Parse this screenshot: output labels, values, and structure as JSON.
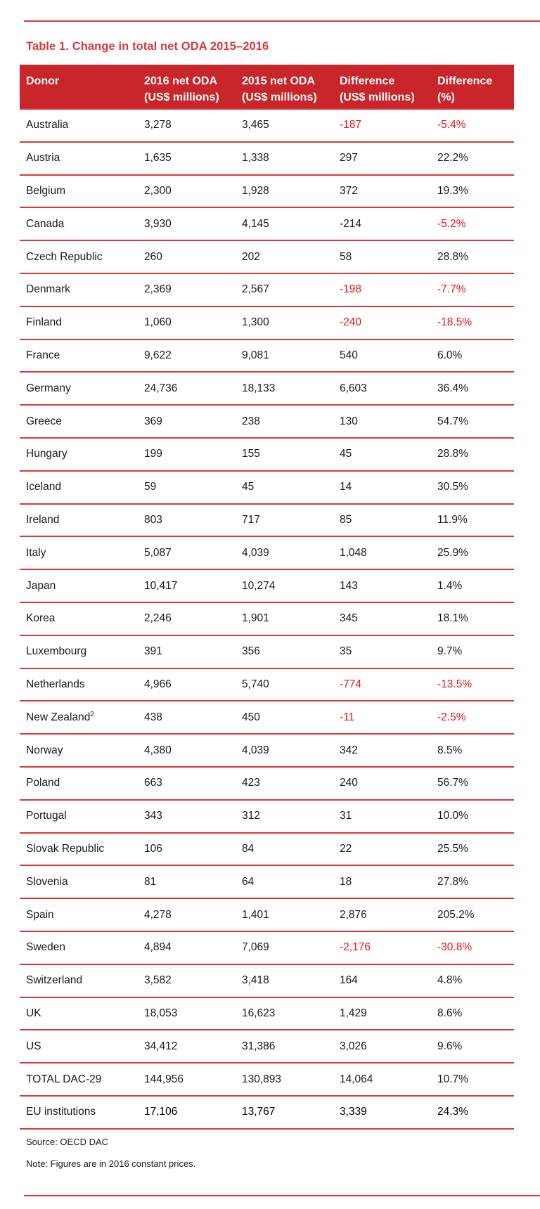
{
  "title": "Table 1. Change in total net ODA 2015–2016",
  "headers": [
    [
      "Donor",
      ""
    ],
    [
      "2016 net ODA",
      "(US$ millions)"
    ],
    [
      "2015 net ODA",
      "(US$ millions)"
    ],
    [
      "Difference",
      "(US$ millions)"
    ],
    [
      "Difference",
      "(%)"
    ]
  ],
  "rows": [
    {
      "donor": "Australia",
      "oda2016": "3,278",
      "oda2015": "3,465",
      "diff": "-187",
      "pct": "-5.4%",
      "diff_neg": true,
      "pct_neg": true
    },
    {
      "donor": "Austria",
      "oda2016": "1,635",
      "oda2015": "1,338",
      "diff": "297",
      "pct": "22.2%"
    },
    {
      "donor": "Belgium",
      "oda2016": "2,300",
      "oda2015": "1,928",
      "diff": "372",
      "pct": "19.3%"
    },
    {
      "donor": "Canada",
      "oda2016": "3,930",
      "oda2015": "4,145",
      "diff": "-214",
      "pct": "-5.2%",
      "pct_neg": true
    },
    {
      "donor": "Czech Republic",
      "oda2016": "260",
      "oda2015": "202",
      "diff": "58",
      "pct": "28.8%"
    },
    {
      "donor": "Denmark",
      "oda2016": "2,369",
      "oda2015": "2,567",
      "diff": "-198",
      "pct": "-7.7%",
      "diff_neg": true,
      "pct_neg": true
    },
    {
      "donor": "Finland",
      "oda2016": "1,060",
      "oda2015": "1,300",
      "diff": "-240",
      "pct": "-18.5%",
      "diff_neg": true,
      "pct_neg": true
    },
    {
      "donor": "France",
      "oda2016": "9,622",
      "oda2015": "9,081",
      "diff": "540",
      "pct": "6.0%"
    },
    {
      "donor": "Germany",
      "oda2016": "24,736",
      "oda2015": "18,133",
      "diff": "6,603",
      "pct": "36.4%"
    },
    {
      "donor": "Greece",
      "oda2016": "369",
      "oda2015": "238",
      "diff": "130",
      "pct": "54.7%"
    },
    {
      "donor": "Hungary",
      "oda2016": "199",
      "oda2015": "155",
      "diff": "45",
      "pct": "28.8%"
    },
    {
      "donor": "Iceland",
      "oda2016": "59",
      "oda2015": "45",
      "diff": "14",
      "pct": "30.5%"
    },
    {
      "donor": "Ireland",
      "oda2016": "803",
      "oda2015": "717",
      "diff": "85",
      "pct": "11.9%"
    },
    {
      "donor": "Italy",
      "oda2016": "5,087",
      "oda2015": "4,039",
      "diff": "1,048",
      "pct": "25.9%"
    },
    {
      "donor": "Japan",
      "oda2016": "10,417",
      "oda2015": "10,274",
      "diff": "143",
      "pct": "1.4%"
    },
    {
      "donor": "Korea",
      "oda2016": "2,246",
      "oda2015": "1,901",
      "diff": "345",
      "pct": "18.1%"
    },
    {
      "donor": "Luxembourg",
      "oda2016": "391",
      "oda2015": "356",
      "diff": "35",
      "pct": "9.7%"
    },
    {
      "donor": "Netherlands",
      "oda2016": "4,966",
      "oda2015": "5,740",
      "diff": "-774",
      "pct": "-13.5%",
      "diff_neg": true,
      "pct_neg": true
    },
    {
      "donor": "New Zealand",
      "sup": "2",
      "oda2016": "438",
      "oda2015": "450",
      "diff": "-11",
      "pct": "-2.5%",
      "diff_neg": true,
      "pct_neg": true
    },
    {
      "donor": "Norway",
      "oda2016": "4,380",
      "oda2015": "4,039",
      "diff": "342",
      "pct": "8.5%"
    },
    {
      "donor": "Poland",
      "oda2016": "663",
      "oda2015": "423",
      "diff": "240",
      "pct": "56.7%"
    },
    {
      "donor": "Portugal",
      "oda2016": "343",
      "oda2015": "312",
      "diff": "31",
      "pct": "10.0%"
    },
    {
      "donor": "Slovak Republic",
      "oda2016": "106",
      "oda2015": "84",
      "diff": "22",
      "pct": "25.5%"
    },
    {
      "donor": "Slovenia",
      "oda2016": "81",
      "oda2015": "64",
      "diff": "18",
      "pct": "27.8%"
    },
    {
      "donor": "Spain",
      "oda2016": "4,278",
      "oda2015": "1,401",
      "diff": "2,876",
      "pct": "205.2%"
    },
    {
      "donor": "Sweden",
      "oda2016": "4,894",
      "oda2015": "7,069",
      "diff": "-2,176",
      "pct": "-30.8%",
      "diff_neg": true,
      "pct_neg": true
    },
    {
      "donor": "Switzerland",
      "oda2016": "3,582",
      "oda2015": "3,418",
      "diff": "164",
      "pct": "4.8%"
    },
    {
      "donor": "UK",
      "oda2016": "18,053",
      "oda2015": "16,623",
      "diff": "1,429",
      "pct": "8.6%"
    },
    {
      "donor": "US",
      "oda2016": "34,412",
      "oda2015": "31,386",
      "diff": "3,026",
      "pct": "9.6%"
    },
    {
      "donor": "TOTAL DAC-29",
      "oda2016": "144,956",
      "oda2015": "130,893",
      "diff": "14,064",
      "pct": "10.7%"
    },
    {
      "donor": "EU institutions",
      "oda2016": "17,106",
      "oda2015": "13,767",
      "diff": "3,339",
      "pct": "24.3%",
      "emph": true
    }
  ],
  "source": "Source: OECD DAC",
  "note": "Note: Figures are in 2016 constant prices.",
  "colors": {
    "accent": "#d9383a",
    "header_bg": "#c8262b",
    "negative": "#e5141a"
  }
}
